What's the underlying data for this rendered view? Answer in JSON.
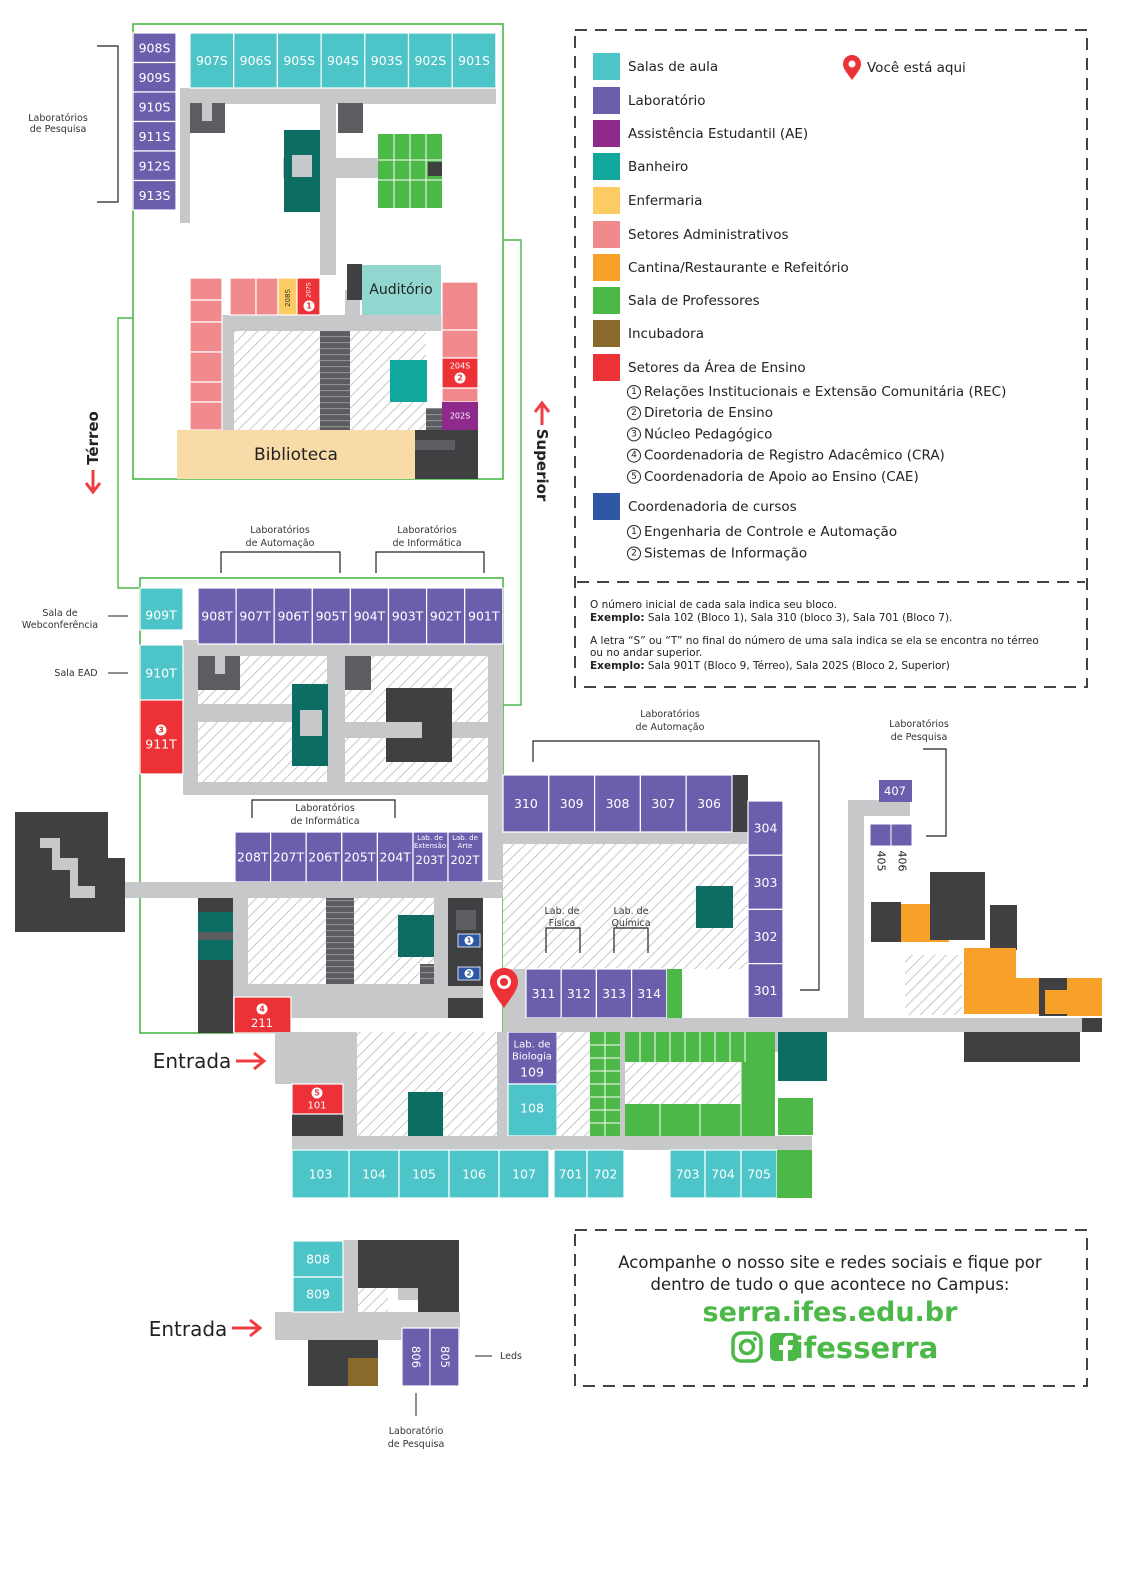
{
  "colors": {
    "classroom": "#4dc4c8",
    "lab": "#6b5fad",
    "ae": "#8e2a8b",
    "bathroom": "#0c6e63",
    "infirmary": "#fccb62",
    "admin": "#f08a8c",
    "canteen": "#f7a02a",
    "professors": "#4cb848",
    "incubator": "#8a6a2a",
    "teaching": "#ec3237",
    "courses": "#2e58a6",
    "corridor": "#c7c8ca",
    "service": "#3e4042",
    "library": "#f9dba8",
    "floor_border": "#4cb848",
    "arrow": "#ee3e42"
  },
  "floor_labels": {
    "terreo": "Térreo",
    "superior": "Superior"
  },
  "upper_floor": {
    "rooms_top": [
      "907S",
      "906S",
      "905S",
      "904S",
      "903S",
      "902S",
      "901S"
    ],
    "rooms_left": [
      "908S",
      "909S",
      "910S",
      "911S",
      "912S",
      "913S"
    ],
    "research_labs_label": [
      "Laboratórios",
      "de Pesquisa"
    ],
    "auditorio": "Auditório",
    "biblioteca": "Biblioteca",
    "room_208S": "208S",
    "room_207S": "207S",
    "room_207S_badge": "1",
    "room_204S": "204S",
    "room_204S_badge": "2",
    "room_202S": "202S"
  },
  "ground_floor": {
    "automation_labs_label": [
      "Laboratórios",
      "de Automação"
    ],
    "informatics_labs_label": [
      "Laboratórios",
      "de Informática"
    ],
    "informatics_labs_label_2": [
      "Laboratórios",
      "de Informática"
    ],
    "rooms_top": [
      "908T",
      "907T",
      "906T",
      "905T",
      "904T",
      "903T",
      "902T",
      "901T"
    ],
    "room_909T": "909T",
    "room_910T": "910T",
    "room_911T": "911T",
    "room_911T_badge": "3",
    "webconf_label": [
      "Sala de",
      "Webconferência"
    ],
    "ead_label": "Sala EAD",
    "rooms_mid": [
      "208T",
      "207T",
      "206T",
      "205T",
      "204T"
    ],
    "room_203T": "203T",
    "room_203T_sub": [
      "Lab. de",
      "Extensão"
    ],
    "room_202T": "202T",
    "room_202T_sub": [
      "Lab. de",
      "Arte"
    ],
    "room_211": "211",
    "room_211_badge": "4",
    "coord_badges": [
      "1",
      "2"
    ],
    "entrada": "Entrada",
    "room_101": "101",
    "room_101_badge": "5",
    "bio_lab": [
      "Lab. de",
      "Biologia"
    ],
    "room_109": "109",
    "room_108": "108",
    "rooms_bottom": [
      "103",
      "104",
      "105",
      "106",
      "107",
      "701",
      "702",
      "703",
      "704",
      "705"
    ],
    "block3_rooms": [
      "310",
      "309",
      "308",
      "307",
      "306"
    ],
    "block3_right": [
      "304",
      "303",
      "302",
      "301"
    ],
    "automation_labs_label_2": [
      "Laboratórios",
      "de Automação"
    ],
    "lab_fisica": [
      "Lab. de",
      "Física"
    ],
    "lab_quimica": [
      "Lab. de",
      "Química"
    ],
    "rooms_31x": [
      "311",
      "312",
      "313",
      "314"
    ],
    "research_labs_label_2": [
      "Laboratórios",
      "de Pesquisa"
    ],
    "room_407": "407",
    "room_405": "405",
    "room_406": "406"
  },
  "block8": {
    "room_808": "808",
    "room_809": "809",
    "room_806": "806",
    "room_805": "805",
    "leds": "Leds",
    "entrada": "Entrada",
    "research_labs_label": [
      "Laboratório",
      "de Pesquisa"
    ]
  },
  "legend": {
    "items": [
      {
        "label": "Salas de aula",
        "color": "#4dc4c8"
      },
      {
        "label": "Laboratório",
        "color": "#6b5fad"
      },
      {
        "label": "Assistência Estudantil (AE)",
        "color": "#8e2a8b"
      },
      {
        "label": "Banheiro",
        "color": "#12a79c"
      },
      {
        "label": "Enfermaria",
        "color": "#fccb62"
      },
      {
        "label": "Setores Administrativos",
        "color": "#f08a8c"
      },
      {
        "label": "Cantina/Restaurante e Refeitório",
        "color": "#f7a02a"
      },
      {
        "label": "Sala de Professores",
        "color": "#4cb848"
      },
      {
        "label": "Incubadora",
        "color": "#8a6a2a"
      },
      {
        "label": "Setores da Área de Ensino",
        "color": "#ec3237"
      }
    ],
    "you_are_here": "Você está aqui",
    "teaching_subitems": [
      {
        "num": "1",
        "label": "Relações Institucionais e Extensão Comunitária (REC)"
      },
      {
        "num": "2",
        "label": "Diretoria de Ensino"
      },
      {
        "num": "3",
        "label": "Núcleo Pedagógico"
      },
      {
        "num": "4",
        "label": "Coordenadoria de Registro Adacêmico (CRA)"
      },
      {
        "num": "5",
        "label": "Coordenadoria de Apoio ao Ensino (CAE)"
      }
    ],
    "courses_label": "Coordenadoria de cursos",
    "courses_color": "#2e58a6",
    "courses_subitems": [
      {
        "num": "1",
        "label": "Engenharia de Controle e Automação"
      },
      {
        "num": "2",
        "label": "Sistemas de Informação"
      }
    ],
    "explain_1": "O número inicial de cada sala indica seu bloco.",
    "explain_1_bold": "Exemplo:",
    "explain_1_ex": " Sala 102 (Bloco 1), Sala 310 (bloco 3), Sala 701 (Bloco 7).",
    "explain_2a": "A letra “S” ou “T” no final do número de uma sala indica se ela se encontra no térreo",
    "explain_2b": "ou no andar superior.",
    "explain_2_bold": "Exemplo:",
    "explain_2_ex": " Sala 901T (Bloco 9, Térreo), Sala 202S (Bloco 2, Superior)"
  },
  "footer": {
    "line1": "Acompanhe o nosso site e redes sociais e fique por",
    "line2": "dentro de tudo o que acontece no Campus:",
    "site": "serra.ifes.edu.br",
    "social": "ifesserra"
  }
}
